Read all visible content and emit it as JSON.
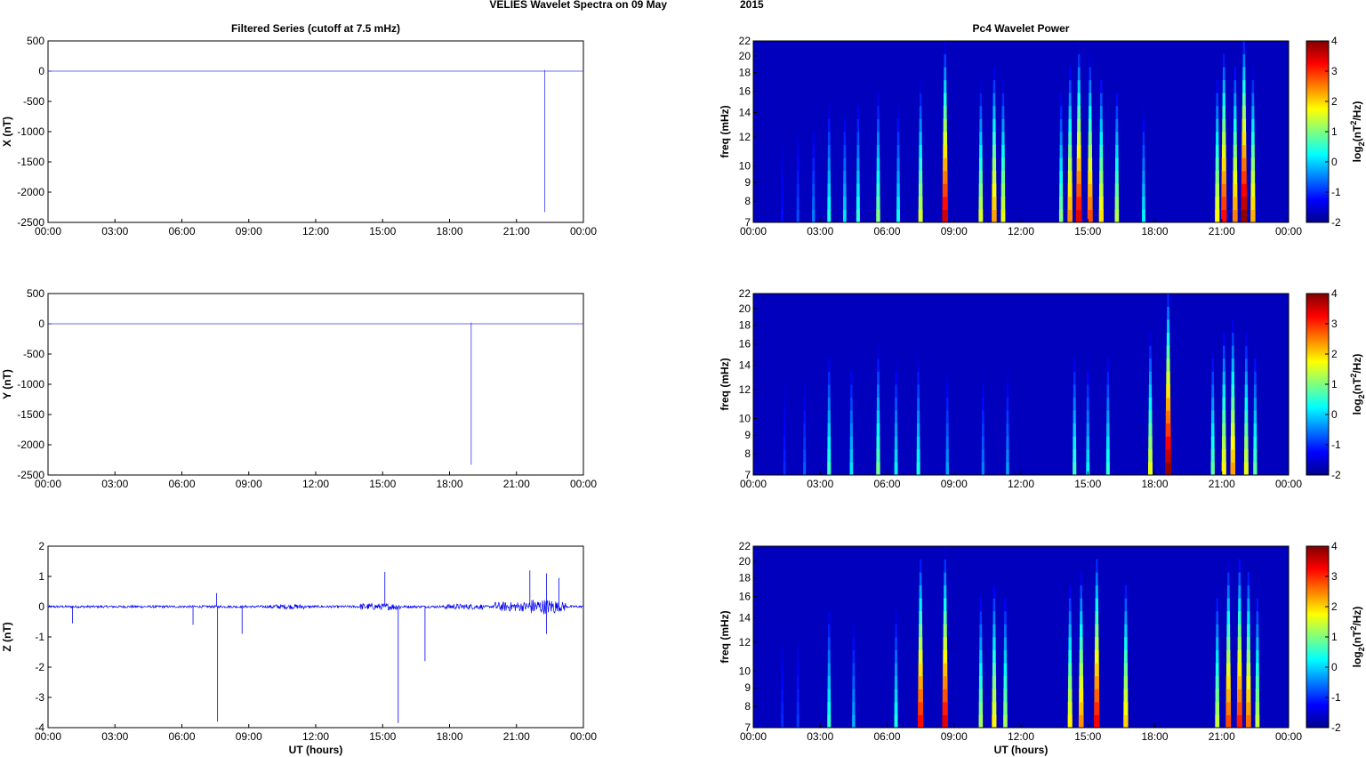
{
  "figure": {
    "suptitle_a": "VELIES Wavelet Spectra on 09 May",
    "suptitle_b": "2015",
    "left_title": "Filtered Series (cutoff at 7.5 mHz)",
    "right_title": "Pc4 Wavelet Power",
    "time_ticks": [
      "00:00",
      "03:00",
      "06:00",
      "09:00",
      "12:00",
      "15:00",
      "18:00",
      "21:00",
      "00:00"
    ],
    "xlabel": "UT (hours)",
    "freq_label": "freq (mHz)",
    "freq_ticks": [
      "7",
      "8",
      "9",
      "10",
      "12",
      "14",
      "16",
      "18",
      "20",
      "22"
    ],
    "cbar_label_base": "log",
    "cbar_label_sub": "2",
    "cbar_label_mid": "(nT",
    "cbar_label_sup": "2",
    "cbar_label_end": "/Hz)",
    "cbar_ticks": [
      "4",
      "3",
      "2",
      "1",
      "0",
      "-1",
      "-2"
    ]
  },
  "chart_data": [
    {
      "type": "line",
      "title": "Filtered Series (cutoff at 7.5 mHz)",
      "ylabel": "X (nT)",
      "xlim_hours": [
        0,
        24
      ],
      "ylim": [
        -2500,
        500
      ],
      "yticks": [
        500,
        0,
        -500,
        -1000,
        -1500,
        -2000,
        -2500
      ],
      "line_color": "#3a3af0",
      "baseline": 0,
      "spikes": [
        {
          "t": 22.27,
          "v": -2330
        },
        {
          "t": 22.27,
          "v": 20
        }
      ]
    },
    {
      "type": "line",
      "ylabel": "Y (nT)",
      "xlim_hours": [
        0,
        24
      ],
      "ylim": [
        -2500,
        500
      ],
      "yticks": [
        500,
        0,
        -500,
        -1000,
        -1500,
        -2000,
        -2500
      ],
      "line_color": "#3a3af0",
      "baseline": 0,
      "spikes": [
        {
          "t": 18.97,
          "v": -2330
        },
        {
          "t": 18.97,
          "v": 20
        }
      ]
    },
    {
      "type": "line",
      "ylabel": "Z (nT)",
      "xlabel": "UT (hours)",
      "xlim_hours": [
        0,
        24
      ],
      "ylim": [
        -4,
        2
      ],
      "yticks": [
        2,
        1,
        0,
        -1,
        -2,
        -3,
        -4
      ],
      "line_color": "#0000ee",
      "baseline": 0,
      "spikes": [
        {
          "t": 7.6,
          "v": -3.8
        },
        {
          "t": 7.55,
          "v": 0.45
        },
        {
          "t": 8.7,
          "v": -0.9
        },
        {
          "t": 15.7,
          "v": -3.85
        },
        {
          "t": 16.9,
          "v": -1.8
        },
        {
          "t": 15.1,
          "v": 1.15
        },
        {
          "t": 22.35,
          "v": 1.1
        },
        {
          "t": 22.35,
          "v": -0.9
        },
        {
          "t": 22.9,
          "v": 0.95
        },
        {
          "t": 21.6,
          "v": 1.2
        },
        {
          "t": 1.1,
          "v": -0.55
        },
        {
          "t": 6.5,
          "v": -0.6
        }
      ]
    },
    {
      "type": "heatmap",
      "title": "Pc4 Wavelet Power",
      "ylabel": "freq (mHz)",
      "xlim_hours": [
        0,
        24
      ],
      "ylim_mHz": [
        7,
        22
      ],
      "clim": [
        -2,
        4
      ],
      "colormap": "jet",
      "streaks": [
        {
          "t": 1.3,
          "p": -1.2
        },
        {
          "t": 2.0,
          "p": -0.8
        },
        {
          "t": 2.7,
          "p": -0.5
        },
        {
          "t": 3.4,
          "p": 0.4
        },
        {
          "t": 4.1,
          "p": 0.1
        },
        {
          "t": 4.7,
          "p": 0.5
        },
        {
          "t": 5.6,
          "p": 1.0
        },
        {
          "t": 6.5,
          "p": 0.3
        },
        {
          "t": 7.5,
          "p": 1.5
        },
        {
          "t": 8.6,
          "p": 3.5
        },
        {
          "t": 10.2,
          "p": 1.5
        },
        {
          "t": 10.8,
          "p": 2.3
        },
        {
          "t": 11.2,
          "p": 1.6
        },
        {
          "t": 13.8,
          "p": 1.0
        },
        {
          "t": 14.2,
          "p": 2.4
        },
        {
          "t": 14.6,
          "p": 3.4
        },
        {
          "t": 15.1,
          "p": 2.8
        },
        {
          "t": 15.6,
          "p": 1.9
        },
        {
          "t": 16.3,
          "p": 1.3
        },
        {
          "t": 17.5,
          "p": 0.2
        },
        {
          "t": 20.8,
          "p": 1.8
        },
        {
          "t": 21.1,
          "p": 3.2
        },
        {
          "t": 21.6,
          "p": 2.5
        },
        {
          "t": 22.0,
          "p": 3.9
        },
        {
          "t": 22.4,
          "p": 2.2
        }
      ]
    },
    {
      "type": "heatmap",
      "ylabel": "freq (mHz)",
      "xlim_hours": [
        0,
        24
      ],
      "ylim_mHz": [
        7,
        22
      ],
      "clim": [
        -2,
        4
      ],
      "colormap": "jet",
      "streaks": [
        {
          "t": 1.4,
          "p": -1.0
        },
        {
          "t": 2.3,
          "p": -0.7
        },
        {
          "t": 3.4,
          "p": 0.6
        },
        {
          "t": 4.4,
          "p": 0.1
        },
        {
          "t": 5.6,
          "p": 0.9
        },
        {
          "t": 6.4,
          "p": 0.2
        },
        {
          "t": 7.4,
          "p": 0.4
        },
        {
          "t": 8.7,
          "p": -0.3
        },
        {
          "t": 10.3,
          "p": -0.5
        },
        {
          "t": 11.4,
          "p": -0.3
        },
        {
          "t": 14.4,
          "p": 0.6
        },
        {
          "t": 15.0,
          "p": 0.2
        },
        {
          "t": 15.9,
          "p": 0.5
        },
        {
          "t": 17.8,
          "p": 1.6
        },
        {
          "t": 18.6,
          "p": 3.9
        },
        {
          "t": 20.6,
          "p": 0.8
        },
        {
          "t": 21.1,
          "p": 1.8
        },
        {
          "t": 21.5,
          "p": 2.3
        },
        {
          "t": 22.1,
          "p": 1.6
        },
        {
          "t": 22.5,
          "p": 0.8
        }
      ]
    },
    {
      "type": "heatmap",
      "ylabel": "freq (mHz)",
      "xlabel": "UT (hours)",
      "xlim_hours": [
        0,
        24
      ],
      "ylim_mHz": [
        7,
        22
      ],
      "clim": [
        -2,
        4
      ],
      "colormap": "jet",
      "streaks": [
        {
          "t": 1.3,
          "p": -1.0
        },
        {
          "t": 2.0,
          "p": -0.9
        },
        {
          "t": 3.4,
          "p": 0.5
        },
        {
          "t": 4.5,
          "p": -0.2
        },
        {
          "t": 6.4,
          "p": 0.4
        },
        {
          "t": 7.5,
          "p": 3.2
        },
        {
          "t": 8.6,
          "p": 3.4
        },
        {
          "t": 10.2,
          "p": 1.2
        },
        {
          "t": 10.8,
          "p": 1.8
        },
        {
          "t": 11.3,
          "p": 1.2
        },
        {
          "t": 14.2,
          "p": 1.8
        },
        {
          "t": 14.7,
          "p": 2.4
        },
        {
          "t": 15.4,
          "p": 3.3
        },
        {
          "t": 16.7,
          "p": 2.0
        },
        {
          "t": 20.8,
          "p": 1.4
        },
        {
          "t": 21.3,
          "p": 2.8
        },
        {
          "t": 21.8,
          "p": 3.1
        },
        {
          "t": 22.2,
          "p": 2.6
        },
        {
          "t": 22.6,
          "p": 1.4
        }
      ]
    }
  ]
}
